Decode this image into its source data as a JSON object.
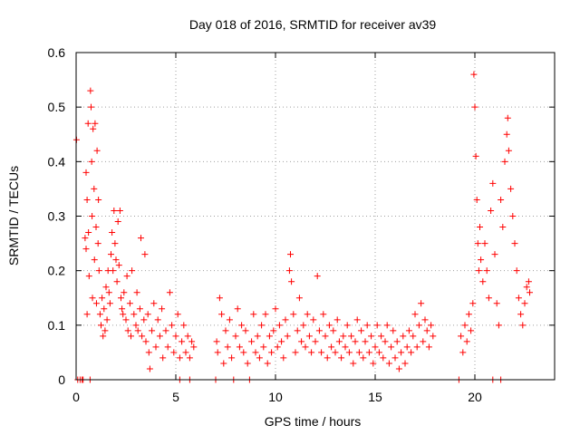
{
  "chart_data": {
    "type": "scatter",
    "title": "Day 018 of 2016, SRMTID for receiver av39",
    "xlabel": "GPS time / hours",
    "ylabel": "SRMTID / TECUs",
    "xlim": [
      0,
      24
    ],
    "ylim": [
      0,
      0.6
    ],
    "xticks": [
      0,
      5,
      10,
      15,
      20
    ],
    "xtick_labels": [
      "0",
      "5",
      "10",
      "15",
      "20"
    ],
    "yticks": [
      0,
      0.1,
      0.2,
      0.3,
      0.4,
      0.5,
      0.6
    ],
    "ytick_labels": [
      "0",
      "0.1",
      "0.2",
      "0.3",
      "0.4",
      "0.5",
      "0.6"
    ],
    "grid": true,
    "marker": "+",
    "color": "#ff0000",
    "series": [
      {
        "name": "SRMTID",
        "points": [
          [
            0.02,
            0.44
          ],
          [
            0.08,
            0.0
          ],
          [
            0.2,
            0.0
          ],
          [
            0.3,
            0.0
          ],
          [
            0.35,
            0.0
          ],
          [
            0.45,
            0.26
          ],
          [
            0.5,
            0.38
          ],
          [
            0.5,
            0.24
          ],
          [
            0.55,
            0.33
          ],
          [
            0.55,
            0.12
          ],
          [
            0.6,
            0.47
          ],
          [
            0.62,
            0.27
          ],
          [
            0.65,
            0.19
          ],
          [
            0.7,
            0.0
          ],
          [
            0.72,
            0.53
          ],
          [
            0.75,
            0.5
          ],
          [
            0.78,
            0.4
          ],
          [
            0.8,
            0.3
          ],
          [
            0.82,
            0.15
          ],
          [
            0.85,
            0.46
          ],
          [
            0.9,
            0.35
          ],
          [
            0.92,
            0.22
          ],
          [
            0.95,
            0.47
          ],
          [
            1.0,
            0.28
          ],
          [
            1.02,
            0.14
          ],
          [
            1.05,
            0.42
          ],
          [
            1.1,
            0.25
          ],
          [
            1.12,
            0.33
          ],
          [
            1.15,
            0.2
          ],
          [
            1.2,
            0.12
          ],
          [
            1.25,
            0.1
          ],
          [
            1.3,
            0.15
          ],
          [
            1.35,
            0.08
          ],
          [
            1.4,
            0.13
          ],
          [
            1.45,
            0.09
          ],
          [
            1.5,
            0.17
          ],
          [
            1.55,
            0.11
          ],
          [
            1.6,
            0.2
          ],
          [
            1.65,
            0.16
          ],
          [
            1.7,
            0.14
          ],
          [
            1.75,
            0.23
          ],
          [
            1.8,
            0.27
          ],
          [
            1.85,
            0.2
          ],
          [
            1.9,
            0.31
          ],
          [
            1.95,
            0.25
          ],
          [
            2.0,
            0.22
          ],
          [
            2.05,
            0.18
          ],
          [
            2.1,
            0.29
          ],
          [
            2.15,
            0.21
          ],
          [
            2.2,
            0.31
          ],
          [
            2.25,
            0.15
          ],
          [
            2.3,
            0.13
          ],
          [
            2.35,
            0.12
          ],
          [
            2.4,
            0.16
          ],
          [
            2.5,
            0.11
          ],
          [
            2.55,
            0.19
          ],
          [
            2.6,
            0.09
          ],
          [
            2.7,
            0.14
          ],
          [
            2.75,
            0.08
          ],
          [
            2.8,
            0.2
          ],
          [
            2.9,
            0.12
          ],
          [
            3.0,
            0.1
          ],
          [
            3.05,
            0.16
          ],
          [
            3.1,
            0.09
          ],
          [
            3.2,
            0.13
          ],
          [
            3.25,
            0.26
          ],
          [
            3.3,
            0.08
          ],
          [
            3.4,
            0.11
          ],
          [
            3.45,
            0.23
          ],
          [
            3.5,
            0.07
          ],
          [
            3.6,
            0.12
          ],
          [
            3.65,
            0.05
          ],
          [
            3.7,
            0.02
          ],
          [
            3.8,
            0.09
          ],
          [
            3.9,
            0.14
          ],
          [
            4.0,
            0.06
          ],
          [
            4.1,
            0.11
          ],
          [
            4.2,
            0.08
          ],
          [
            4.3,
            0.13
          ],
          [
            4.35,
            0.04
          ],
          [
            4.5,
            0.09
          ],
          [
            4.6,
            0.06
          ],
          [
            4.7,
            0.16
          ],
          [
            4.8,
            0.1
          ],
          [
            4.9,
            0.05
          ],
          [
            5.0,
            0.08
          ],
          [
            5.1,
            0.12
          ],
          [
            5.2,
            0.04
          ],
          [
            5.3,
            0.07
          ],
          [
            5.4,
            0.1
          ],
          [
            5.5,
            0.05
          ],
          [
            5.6,
            0.08
          ],
          [
            5.7,
            0.04
          ],
          [
            5.8,
            0.07
          ],
          [
            5.9,
            0.06
          ],
          [
            5.2,
            0.0
          ],
          [
            5.7,
            0.0
          ],
          [
            7.0,
            0.0
          ],
          [
            7.05,
            0.07
          ],
          [
            7.1,
            0.05
          ],
          [
            7.2,
            0.15
          ],
          [
            7.3,
            0.12
          ],
          [
            7.4,
            0.03
          ],
          [
            7.5,
            0.09
          ],
          [
            7.6,
            0.06
          ],
          [
            7.7,
            0.11
          ],
          [
            7.8,
            0.04
          ],
          [
            7.9,
            0.0
          ],
          [
            8.0,
            0.08
          ],
          [
            8.1,
            0.13
          ],
          [
            8.2,
            0.06
          ],
          [
            8.3,
            0.1
          ],
          [
            8.4,
            0.05
          ],
          [
            8.5,
            0.09
          ],
          [
            8.6,
            0.03
          ],
          [
            8.7,
            0.0
          ],
          [
            8.8,
            0.07
          ],
          [
            8.9,
            0.12
          ],
          [
            9.0,
            0.05
          ],
          [
            9.1,
            0.08
          ],
          [
            9.2,
            0.04
          ],
          [
            9.3,
            0.1
          ],
          [
            9.4,
            0.06
          ],
          [
            9.5,
            0.12
          ],
          [
            9.6,
            0.03
          ],
          [
            9.7,
            0.08
          ],
          [
            9.8,
            0.05
          ],
          [
            9.9,
            0.09
          ],
          [
            10.0,
            0.13
          ],
          [
            10.1,
            0.06
          ],
          [
            10.2,
            0.1
          ],
          [
            10.3,
            0.07
          ],
          [
            10.4,
            0.04
          ],
          [
            10.5,
            0.11
          ],
          [
            10.6,
            0.08
          ],
          [
            10.7,
            0.2
          ],
          [
            10.75,
            0.23
          ],
          [
            10.8,
            0.18
          ],
          [
            10.9,
            0.12
          ],
          [
            11.0,
            0.05
          ],
          [
            11.1,
            0.09
          ],
          [
            11.2,
            0.15
          ],
          [
            11.3,
            0.07
          ],
          [
            11.4,
            0.1
          ],
          [
            11.5,
            0.06
          ],
          [
            11.6,
            0.12
          ],
          [
            11.7,
            0.08
          ],
          [
            11.8,
            0.05
          ],
          [
            11.9,
            0.11
          ],
          [
            12.0,
            0.07
          ],
          [
            12.1,
            0.19
          ],
          [
            12.2,
            0.09
          ],
          [
            12.3,
            0.05
          ],
          [
            12.4,
            0.12
          ],
          [
            12.5,
            0.08
          ],
          [
            12.6,
            0.04
          ],
          [
            12.7,
            0.1
          ],
          [
            12.8,
            0.06
          ],
          [
            12.9,
            0.09
          ],
          [
            13.0,
            0.05
          ],
          [
            13.1,
            0.11
          ],
          [
            13.2,
            0.07
          ],
          [
            13.3,
            0.04
          ],
          [
            13.4,
            0.08
          ],
          [
            13.5,
            0.06
          ],
          [
            13.6,
            0.1
          ],
          [
            13.7,
            0.05
          ],
          [
            13.8,
            0.08
          ],
          [
            13.9,
            0.03
          ],
          [
            14.0,
            0.07
          ],
          [
            14.1,
            0.11
          ],
          [
            14.2,
            0.05
          ],
          [
            14.3,
            0.09
          ],
          [
            14.4,
            0.04
          ],
          [
            14.5,
            0.07
          ],
          [
            14.6,
            0.1
          ],
          [
            14.7,
            0.05
          ],
          [
            14.8,
            0.08
          ],
          [
            14.9,
            0.03
          ],
          [
            15.0,
            0.06
          ],
          [
            15.1,
            0.1
          ],
          [
            15.2,
            0.05
          ],
          [
            15.3,
            0.08
          ],
          [
            15.4,
            0.04
          ],
          [
            15.5,
            0.07
          ],
          [
            15.6,
            0.1
          ],
          [
            15.7,
            0.03
          ],
          [
            15.8,
            0.06
          ],
          [
            15.9,
            0.09
          ],
          [
            16.0,
            0.04
          ],
          [
            16.1,
            0.07
          ],
          [
            16.2,
            0.02
          ],
          [
            16.3,
            0.05
          ],
          [
            16.4,
            0.08
          ],
          [
            16.5,
            0.03
          ],
          [
            16.6,
            0.06
          ],
          [
            16.7,
            0.09
          ],
          [
            16.8,
            0.05
          ],
          [
            16.9,
            0.08
          ],
          [
            17.0,
            0.12
          ],
          [
            17.1,
            0.06
          ],
          [
            17.2,
            0.1
          ],
          [
            17.3,
            0.14
          ],
          [
            17.4,
            0.07
          ],
          [
            17.5,
            0.11
          ],
          [
            17.6,
            0.09
          ],
          [
            17.7,
            0.06
          ],
          [
            17.8,
            0.1
          ],
          [
            17.9,
            0.08
          ],
          [
            19.2,
            0.0
          ],
          [
            19.3,
            0.08
          ],
          [
            19.4,
            0.05
          ],
          [
            19.5,
            0.1
          ],
          [
            19.6,
            0.07
          ],
          [
            19.7,
            0.12
          ],
          [
            19.8,
            0.09
          ],
          [
            19.9,
            0.14
          ],
          [
            19.95,
            0.56
          ],
          [
            20.0,
            0.5
          ],
          [
            20.05,
            0.41
          ],
          [
            20.1,
            0.33
          ],
          [
            20.15,
            0.25
          ],
          [
            20.2,
            0.2
          ],
          [
            20.25,
            0.28
          ],
          [
            20.3,
            0.22
          ],
          [
            20.4,
            0.18
          ],
          [
            20.5,
            0.25
          ],
          [
            20.6,
            0.2
          ],
          [
            20.7,
            0.15
          ],
          [
            20.8,
            0.31
          ],
          [
            20.9,
            0.36
          ],
          [
            21.0,
            0.23
          ],
          [
            21.1,
            0.14
          ],
          [
            21.2,
            0.1
          ],
          [
            21.3,
            0.33
          ],
          [
            21.4,
            0.28
          ],
          [
            21.5,
            0.4
          ],
          [
            21.6,
            0.45
          ],
          [
            21.65,
            0.48
          ],
          [
            21.7,
            0.42
          ],
          [
            21.8,
            0.35
          ],
          [
            21.9,
            0.3
          ],
          [
            22.0,
            0.25
          ],
          [
            22.1,
            0.2
          ],
          [
            22.2,
            0.15
          ],
          [
            22.3,
            0.12
          ],
          [
            22.4,
            0.1
          ],
          [
            22.5,
            0.14
          ],
          [
            22.6,
            0.17
          ],
          [
            22.7,
            0.18
          ],
          [
            22.75,
            0.16
          ],
          [
            21.3,
            0.0
          ],
          [
            20.9,
            0.0
          ]
        ]
      }
    ]
  }
}
